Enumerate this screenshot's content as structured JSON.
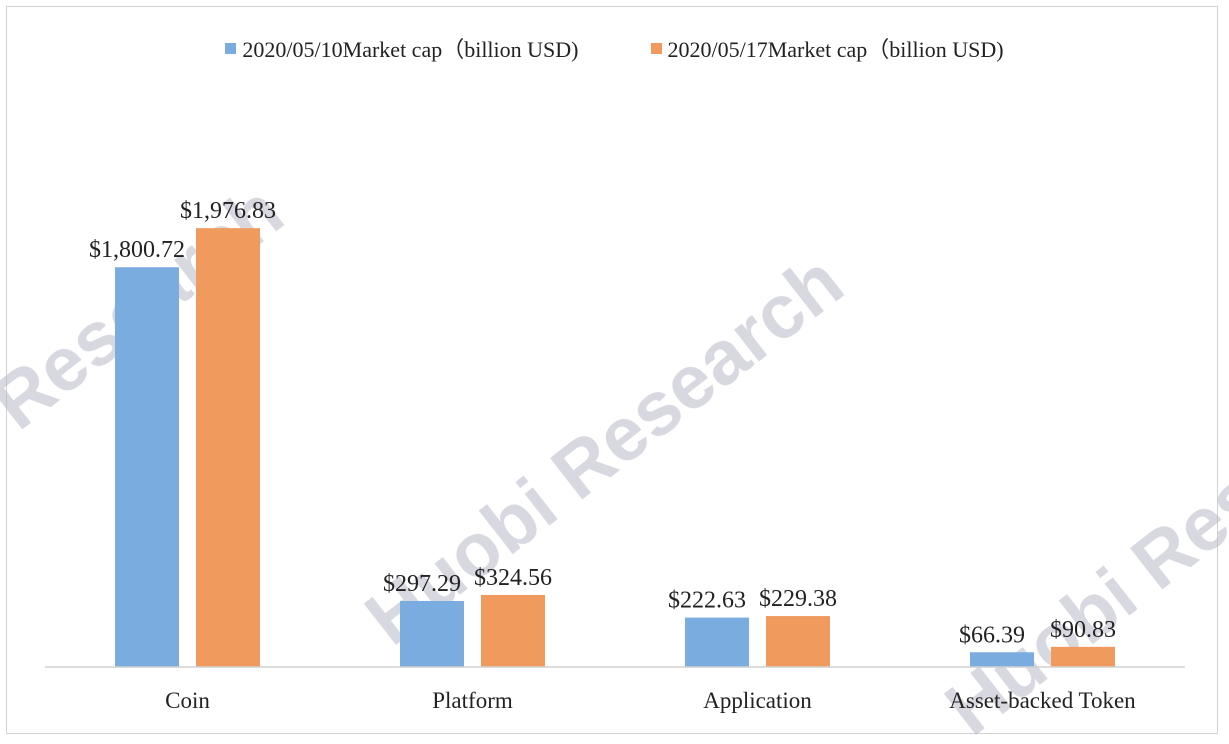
{
  "chart_data": {
    "type": "bar",
    "categories": [
      "Coin",
      "Platform",
      "Application",
      "Asset-backed Token"
    ],
    "series": [
      {
        "name": "2020/05/10Market cap（billion USD)",
        "values": [
          1800.72,
          297.29,
          222.63,
          66.39
        ],
        "labels": [
          "$1,800.72",
          "$297.29",
          "$222.63",
          "$66.39"
        ],
        "color": "#7aace0"
      },
      {
        "name": "2020/05/17Market cap（billion USD)",
        "values": [
          1976.83,
          324.56,
          229.38,
          90.83
        ],
        "labels": [
          "$1,976.83",
          "$324.56",
          "$229.38",
          "$90.83"
        ],
        "color": "#f09a5e"
      }
    ],
    "ylim": [
      0,
      2000
    ],
    "grid": false,
    "legend_position": "top"
  },
  "watermark": {
    "text": "Huobi Research",
    "color": "#b8b8c8"
  }
}
